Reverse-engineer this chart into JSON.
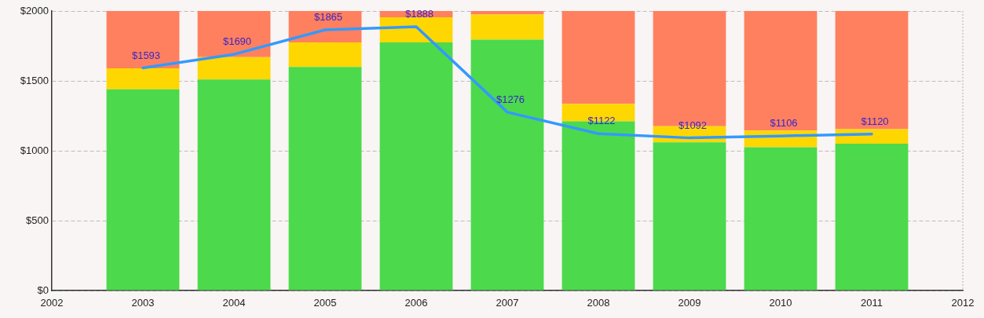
{
  "chart_data": {
    "type": "bar",
    "stacked": true,
    "grid": "y",
    "x": [
      2003,
      2004,
      2005,
      2006,
      2007,
      2008,
      2009,
      2010,
      2011
    ],
    "xlim": [
      2002,
      2012
    ],
    "xticks": [
      2002,
      2003,
      2004,
      2005,
      2006,
      2007,
      2008,
      2009,
      2010,
      2011,
      2012
    ],
    "ylim": [
      0,
      2000
    ],
    "yticks": [
      {
        "value": 0,
        "label": "$0"
      },
      {
        "value": 500,
        "label": "$500"
      },
      {
        "value": 1000,
        "label": "$1000"
      },
      {
        "value": 1500,
        "label": "$1500"
      },
      {
        "value": 2000,
        "label": "$2000"
      }
    ],
    "series": [
      {
        "color": "#4cd94c",
        "values": [
          1440,
          1510,
          1600,
          1775,
          1795,
          1210,
          1060,
          1025,
          1050
        ]
      },
      {
        "color": "#ffd700",
        "values": [
          150,
          160,
          175,
          180,
          180,
          125,
          115,
          120,
          105
        ]
      },
      {
        "color": "#ff805f",
        "values": [
          410,
          330,
          225,
          45,
          25,
          665,
          825,
          855,
          845
        ]
      },
      {
        "type": "line",
        "color": "#3399ff",
        "values": [
          1593,
          1690,
          1865,
          1888,
          1276,
          1122,
          1092,
          1106,
          1120
        ],
        "value_labels": [
          "$1593",
          "$1690",
          "$1865",
          "$1888",
          "$1276",
          "$1122",
          "$1092",
          "$1106",
          "$1120"
        ]
      }
    ]
  }
}
